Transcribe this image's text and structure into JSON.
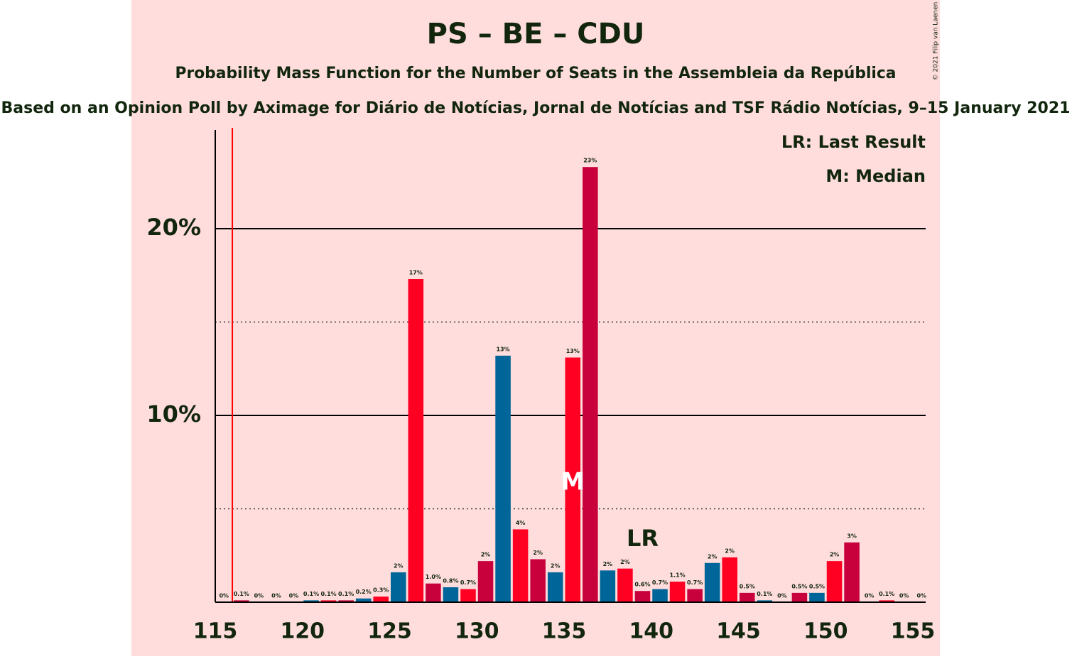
{
  "chart_data": {
    "type": "bar",
    "title": "PS – BE – CDU",
    "subtitles": [
      "Probability Mass Function for the Number of Seats in the Assembleia da República",
      "Based on an Opinion Poll by Aximage for Diário de Notícias, Jornal de Notícias and TSF Rádio Notícias, 9–15 January 2021"
    ],
    "copyright": "© 2021 Filip van Laenen",
    "x": [
      115,
      116,
      117,
      118,
      119,
      120,
      121,
      122,
      123,
      124,
      125,
      126,
      127,
      128,
      129,
      130,
      131,
      132,
      133,
      134,
      135,
      136,
      137,
      138,
      139,
      140,
      141,
      142,
      143,
      144,
      145,
      146,
      147,
      148,
      149,
      150,
      151,
      152,
      153,
      154,
      155
    ],
    "values": [
      0,
      0.1,
      0,
      0,
      0,
      0.1,
      0.1,
      0.1,
      0.2,
      0.3,
      1.6,
      17.3,
      1.0,
      0.8,
      0.7,
      2.2,
      13.2,
      3.9,
      2.3,
      1.6,
      13.1,
      23.3,
      1.7,
      1.8,
      0.6,
      0.7,
      1.1,
      0.7,
      2.1,
      2.4,
      0.5,
      0.1,
      0,
      0.5,
      0.5,
      2.2,
      3.2,
      0,
      0.1,
      0,
      0
    ],
    "value_labels": [
      "0%",
      "0.1%",
      "0%",
      "0%",
      "0%",
      "0.1%",
      "0.1%",
      "0.1%",
      "0.2%",
      "0.3%",
      "2%",
      "17%",
      "1.0%",
      "0.8%",
      "0.7%",
      "2%",
      "13%",
      "4%",
      "2%",
      "2%",
      "13%",
      "23%",
      "2%",
      "2%",
      "0.6%",
      "0.7%",
      "1.1%",
      "0.7%",
      "2%",
      "2%",
      "0.5%",
      "0.1%",
      "0%",
      "0.5%",
      "0.5%",
      "2%",
      "3%",
      "0%",
      "0.1%",
      "0%",
      "0%"
    ],
    "colors": [
      "#ff0022",
      "#c8003c",
      "#006699",
      "#ff0022",
      "#c8003c",
      "#006699",
      "#ff0022",
      "#c8003c",
      "#006699",
      "#ff0022",
      "#006699",
      "#ff0022",
      "#c8003c",
      "#006699",
      "#ff0022",
      "#c8003c",
      "#006699",
      "#ff0022",
      "#c8003c",
      "#006699",
      "#ff0022",
      "#c8003c",
      "#006699",
      "#ff0022",
      "#c8003c",
      "#006699",
      "#ff0022",
      "#c8003c",
      "#006699",
      "#ff0022",
      "#c8003c",
      "#006699",
      "#ff0022",
      "#c8003c",
      "#006699",
      "#ff0022",
      "#c8003c",
      "#006699",
      "#ff0022",
      "#c8003c",
      "#006699"
    ],
    "xlim": [
      115,
      155
    ],
    "xticks": [
      115,
      120,
      125,
      130,
      135,
      140,
      145,
      150,
      155
    ],
    "ylim": [
      0,
      25
    ],
    "yticks": [
      {
        "value": 10,
        "label": "10%"
      },
      {
        "value": 20,
        "label": "20%"
      }
    ],
    "minor_yticks": [
      5,
      15
    ],
    "majority": 116,
    "median": {
      "value": 135,
      "label": "M"
    },
    "last_result": {
      "value": 139,
      "label": "LR"
    },
    "legend": [
      "LR: Last Result",
      "M: Median"
    ]
  }
}
